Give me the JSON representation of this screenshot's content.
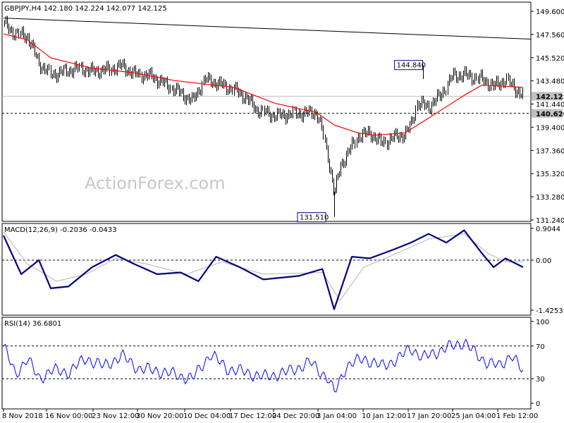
{
  "header": {
    "price": "GBPJPY,H4  142.180 142.224 142.077 142.125",
    "macd": "MACD(12,26,9) -0.2036 -0.0433",
    "rsi": "RSI(14) 36.6801"
  },
  "watermark": "ActionForex.com",
  "colors": {
    "candle": "#000000",
    "ma": "#ff0000",
    "macd_line": "#00007f",
    "macd_signal": "#b4b4b4",
    "rsi_line": "#0000ff",
    "tag_border": "#00007f",
    "tag_fill": "#c0c0c0",
    "trendline": "#000000",
    "axis": "#000000",
    "watermark": "#c8c8c8"
  },
  "chart_data": [
    {
      "type": "candlestick",
      "title": "GBPJPY,H4",
      "x_ticks": [
        "8 Nov 2018",
        "16 Nov 00:00",
        "23 Nov 12:00",
        "30 Nov 20:00",
        "10 Dec 04:00",
        "17 Dec 12:00",
        "24 Dec 20:00",
        "3 Jan 04:00",
        "10 Jan 12:00",
        "17 Jan 20:00",
        "25 Jan 04:00",
        "1 Feb 12:00"
      ],
      "ylim": [
        131.24,
        149.6
      ],
      "y_ticks": [
        "149.600",
        "147.560",
        "145.520",
        "143.480",
        "141.440",
        "139.400",
        "137.360",
        "135.320",
        "133.280",
        "131.240"
      ],
      "current_price": "142.125",
      "support_line": "140.620",
      "annotations": [
        {
          "label": "144.840",
          "x": "18 Jan 2019",
          "y": 144.84
        },
        {
          "label": "131.510",
          "x": "3 Jan 2019",
          "y": 131.51
        }
      ],
      "trendline": [
        {
          "x": "8 Nov 2018",
          "y": 149.0
        },
        {
          "x": "4 Feb 2019",
          "y": 147.15
        }
      ],
      "close_path": [
        {
          "x": "8 Nov 2018",
          "y": 148.5
        },
        {
          "x": "10 Nov 2018",
          "y": 147.6
        },
        {
          "x": "12 Nov 2018",
          "y": 147.4
        },
        {
          "x": "14 Nov 2018",
          "y": 145.0
        },
        {
          "x": "16 Nov 2018",
          "y": 144.0
        },
        {
          "x": "19 Nov 2018",
          "y": 144.4
        },
        {
          "x": "21 Nov 2018",
          "y": 144.6
        },
        {
          "x": "23 Nov 2018",
          "y": 144.3
        },
        {
          "x": "26 Nov 2018",
          "y": 144.5
        },
        {
          "x": "28 Nov 2018",
          "y": 144.8
        },
        {
          "x": "30 Nov 2018",
          "y": 144.1
        },
        {
          "x": "3 Dec 2018",
          "y": 143.9
        },
        {
          "x": "5 Dec 2018",
          "y": 143.3
        },
        {
          "x": "7 Dec 2018",
          "y": 142.7
        },
        {
          "x": "10 Dec 2018",
          "y": 141.7
        },
        {
          "x": "12 Dec 2018",
          "y": 143.6
        },
        {
          "x": "14 Dec 2018",
          "y": 143.3
        },
        {
          "x": "17 Dec 2018",
          "y": 142.7
        },
        {
          "x": "19 Dec 2018",
          "y": 142.0
        },
        {
          "x": "21 Dec 2018",
          "y": 140.9
        },
        {
          "x": "24 Dec 2018",
          "y": 140.4
        },
        {
          "x": "26 Dec 2018",
          "y": 140.5
        },
        {
          "x": "28 Dec 2018",
          "y": 140.6
        },
        {
          "x": "31 Dec 2018",
          "y": 140.7
        },
        {
          "x": "1 Jan 2019",
          "y": 139.0
        },
        {
          "x": "2 Jan 2019",
          "y": 136.5
        },
        {
          "x": "3 Jan 2019",
          "y": 133.5
        },
        {
          "x": "4 Jan 2019",
          "y": 136.0
        },
        {
          "x": "7 Jan 2019",
          "y": 138.6
        },
        {
          "x": "9 Jan 2019",
          "y": 138.9
        },
        {
          "x": "11 Jan 2019",
          "y": 138.0
        },
        {
          "x": "13 Jan 2019",
          "y": 138.5
        },
        {
          "x": "15 Jan 2019",
          "y": 138.8
        },
        {
          "x": "16 Jan 2019",
          "y": 139.6
        },
        {
          "x": "17 Jan 2019",
          "y": 141.5
        },
        {
          "x": "19 Jan 2019",
          "y": 141.2
        },
        {
          "x": "21 Jan 2019",
          "y": 142.2
        },
        {
          "x": "23 Jan 2019",
          "y": 143.9
        },
        {
          "x": "25 Jan 2019",
          "y": 144.0
        },
        {
          "x": "28 Jan 2019",
          "y": 143.6
        },
        {
          "x": "30 Jan 2019",
          "y": 143.0
        },
        {
          "x": "1 Feb 2019",
          "y": 143.6
        },
        {
          "x": "4 Feb 2019",
          "y": 142.1
        }
      ],
      "ma": [
        {
          "x": "8 Nov 2018",
          "y": 147.6
        },
        {
          "x": "12 Nov 2018",
          "y": 147.1
        },
        {
          "x": "16 Nov 2018",
          "y": 145.5
        },
        {
          "x": "23 Nov 2018",
          "y": 144.6
        },
        {
          "x": "30 Nov 2018",
          "y": 144.2
        },
        {
          "x": "7 Dec 2018",
          "y": 143.5
        },
        {
          "x": "12 Dec 2018",
          "y": 143.2
        },
        {
          "x": "17 Dec 2018",
          "y": 142.9
        },
        {
          "x": "24 Dec 2018",
          "y": 141.5
        },
        {
          "x": "31 Dec 2018",
          "y": 140.7
        },
        {
          "x": "3 Jan 2019",
          "y": 139.6
        },
        {
          "x": "7 Jan 2019",
          "y": 138.9
        },
        {
          "x": "10 Jan 2019",
          "y": 138.7
        },
        {
          "x": "15 Jan 2019",
          "y": 138.9
        },
        {
          "x": "19 Jan 2019",
          "y": 140.2
        },
        {
          "x": "25 Jan 2019",
          "y": 142.2
        },
        {
          "x": "28 Jan 2019",
          "y": 143.1
        },
        {
          "x": "1 Feb 2019",
          "y": 143.0
        },
        {
          "x": "4 Feb 2019",
          "y": 142.9
        }
      ]
    },
    {
      "type": "line",
      "title": "MACD(12,26,9)",
      "ylim": [
        -1.4253,
        0.9044
      ],
      "y_ticks": [
        "0.9044",
        "0.00",
        "-1.4253"
      ],
      "macd": [
        {
          "x": "8 Nov 2018",
          "y": 0.7
        },
        {
          "x": "11 Nov 2018",
          "y": -0.4
        },
        {
          "x": "14 Nov 2018",
          "y": 0.0
        },
        {
          "x": "16 Nov 2018",
          "y": -0.8
        },
        {
          "x": "19 Nov 2018",
          "y": -0.75
        },
        {
          "x": "23 Nov 2018",
          "y": -0.2
        },
        {
          "x": "27 Nov 2018",
          "y": 0.15
        },
        {
          "x": "30 Nov 2018",
          "y": -0.1
        },
        {
          "x": "4 Dec 2018",
          "y": -0.4
        },
        {
          "x": "8 Dec 2018",
          "y": -0.35
        },
        {
          "x": "11 Dec 2018",
          "y": -0.6
        },
        {
          "x": "14 Dec 2018",
          "y": 0.1
        },
        {
          "x": "18 Dec 2018",
          "y": -0.2
        },
        {
          "x": "22 Dec 2018",
          "y": -0.55
        },
        {
          "x": "28 Dec 2018",
          "y": -0.45
        },
        {
          "x": "1 Jan 2019",
          "y": -0.25
        },
        {
          "x": "3 Jan 2019",
          "y": -1.4
        },
        {
          "x": "6 Jan 2019",
          "y": 0.1
        },
        {
          "x": "9 Jan 2019",
          "y": 0.05
        },
        {
          "x": "13 Jan 2019",
          "y": 0.3
        },
        {
          "x": "16 Jan 2019",
          "y": 0.5
        },
        {
          "x": "19 Jan 2019",
          "y": 0.75
        },
        {
          "x": "22 Jan 2019",
          "y": 0.5
        },
        {
          "x": "25 Jan 2019",
          "y": 0.85
        },
        {
          "x": "28 Jan 2019",
          "y": 0.2
        },
        {
          "x": "30 Jan 2019",
          "y": -0.2
        },
        {
          "x": "1 Feb 2019",
          "y": 0.05
        },
        {
          "x": "4 Feb 2019",
          "y": -0.2
        }
      ],
      "signal": [
        {
          "x": "8 Nov 2018",
          "y": 0.8
        },
        {
          "x": "12 Nov 2018",
          "y": -0.1
        },
        {
          "x": "17 Nov 2018",
          "y": -0.6
        },
        {
          "x": "22 Nov 2018",
          "y": -0.4
        },
        {
          "x": "27 Nov 2018",
          "y": 0.05
        },
        {
          "x": "2 Dec 2018",
          "y": -0.1
        },
        {
          "x": "9 Dec 2018",
          "y": -0.4
        },
        {
          "x": "15 Dec 2018",
          "y": -0.05
        },
        {
          "x": "22 Dec 2018",
          "y": -0.4
        },
        {
          "x": "1 Jan 2019",
          "y": -0.35
        },
        {
          "x": "4 Jan 2019",
          "y": -1.15
        },
        {
          "x": "8 Jan 2019",
          "y": -0.2
        },
        {
          "x": "13 Jan 2019",
          "y": 0.15
        },
        {
          "x": "19 Jan 2019",
          "y": 0.6
        },
        {
          "x": "25 Jan 2019",
          "y": 0.75
        },
        {
          "x": "29 Jan 2019",
          "y": 0.2
        },
        {
          "x": "1 Feb 2019",
          "y": -0.05
        },
        {
          "x": "4 Feb 2019",
          "y": -0.05
        }
      ]
    },
    {
      "type": "line",
      "title": "RSI(14)",
      "ylim": [
        0,
        100
      ],
      "y_ticks": [
        "100",
        "70",
        "30",
        "0"
      ],
      "levels": [
        70,
        30
      ],
      "values": [
        {
          "x": "8 Nov 2018",
          "y": 70
        },
        {
          "x": "10 Nov 2018",
          "y": 35
        },
        {
          "x": "12 Nov 2018",
          "y": 55
        },
        {
          "x": "14 Nov 2018",
          "y": 30
        },
        {
          "x": "16 Nov 2018",
          "y": 40
        },
        {
          "x": "19 Nov 2018",
          "y": 38
        },
        {
          "x": "22 Nov 2018",
          "y": 55
        },
        {
          "x": "25 Nov 2018",
          "y": 45
        },
        {
          "x": "28 Nov 2018",
          "y": 58
        },
        {
          "x": "1 Dec 2018",
          "y": 42
        },
        {
          "x": "4 Dec 2018",
          "y": 40
        },
        {
          "x": "7 Dec 2018",
          "y": 35
        },
        {
          "x": "10 Dec 2018",
          "y": 30
        },
        {
          "x": "13 Dec 2018",
          "y": 60
        },
        {
          "x": "16 Dec 2018",
          "y": 42
        },
        {
          "x": "19 Dec 2018",
          "y": 38
        },
        {
          "x": "22 Dec 2018",
          "y": 32
        },
        {
          "x": "26 Dec 2018",
          "y": 38
        },
        {
          "x": "30 Dec 2018",
          "y": 50
        },
        {
          "x": "2 Jan 2019",
          "y": 30
        },
        {
          "x": "3 Jan 2019",
          "y": 12
        },
        {
          "x": "5 Jan 2019",
          "y": 45
        },
        {
          "x": "8 Jan 2019",
          "y": 55
        },
        {
          "x": "11 Jan 2019",
          "y": 45
        },
        {
          "x": "14 Jan 2019",
          "y": 55
        },
        {
          "x": "16 Jan 2019",
          "y": 68
        },
        {
          "x": "18 Jan 2019",
          "y": 55
        },
        {
          "x": "20 Jan 2019",
          "y": 62
        },
        {
          "x": "23 Jan 2019",
          "y": 70
        },
        {
          "x": "25 Jan 2019",
          "y": 75
        },
        {
          "x": "27 Jan 2019",
          "y": 60
        },
        {
          "x": "29 Jan 2019",
          "y": 50
        },
        {
          "x": "31 Jan 2019",
          "y": 45
        },
        {
          "x": "2 Feb 2019",
          "y": 60
        },
        {
          "x": "4 Feb 2019",
          "y": 37
        }
      ]
    }
  ]
}
